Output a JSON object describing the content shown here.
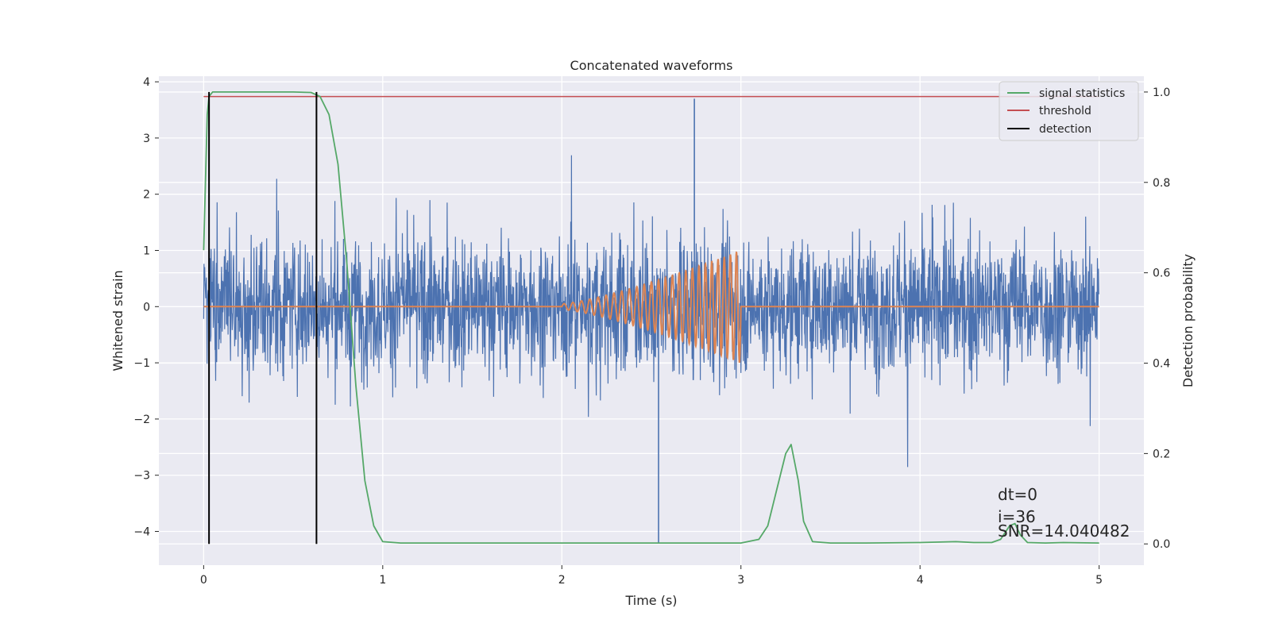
{
  "chart_data": {
    "type": "line",
    "title": "Concatenated waveforms",
    "xlabel": "Time (s)",
    "ylabel": "Whitened strain",
    "ylabel_right": "Detection probability",
    "xlim": [
      -0.25,
      5.25
    ],
    "ylim": [
      -4.6,
      4.1
    ],
    "ylim_right": [
      -0.047,
      1.035
    ],
    "x_ticks": [
      0,
      1,
      2,
      3,
      4,
      5
    ],
    "y_ticks": [
      -4,
      -3,
      -2,
      -1,
      0,
      1,
      2,
      3,
      4
    ],
    "y_ticks_right": [
      0.0,
      0.2,
      0.4,
      0.6,
      0.8,
      1.0
    ],
    "x_tick_labels": [
      "0",
      "1",
      "2",
      "3",
      "4",
      "5"
    ],
    "y_tick_labels": [
      "−4",
      "−3",
      "−2",
      "−1",
      "0",
      "1",
      "2",
      "3",
      "4"
    ],
    "y_tick_labels_right": [
      "0.0",
      "0.2",
      "0.4",
      "0.6",
      "0.8",
      "1.0"
    ],
    "grid": true,
    "legend_position": "top-right",
    "colors": {
      "background": "#eaeaf2",
      "grid": "#ffffff",
      "noise": "#4c72b0",
      "injection": "#dd8452",
      "statistics": "#55a868",
      "threshold": "#c44e52",
      "detection": "#000000"
    },
    "legend": [
      {
        "label": "signal statistics",
        "color": "#55a868"
      },
      {
        "label": "threshold",
        "color": "#c44e52"
      },
      {
        "label": "detection",
        "color": "#000000"
      }
    ],
    "series": [
      {
        "name": "signal statistics",
        "axis": "right",
        "x": [
          0,
          0.01,
          0.02,
          0.03,
          0.05,
          0.08,
          0.15,
          0.3,
          0.5,
          0.6,
          0.65,
          0.7,
          0.75,
          0.8,
          0.85,
          0.9,
          0.95,
          1.0,
          1.1,
          1.5,
          2.0,
          2.5,
          3.0,
          3.1,
          3.15,
          3.2,
          3.25,
          3.28,
          3.32,
          3.35,
          3.4,
          3.5,
          3.7,
          4.0,
          4.2,
          4.3,
          4.4,
          4.45,
          4.5,
          4.53,
          4.56,
          4.6,
          4.7,
          4.8,
          5.0
        ],
        "values": [
          0.65,
          0.8,
          0.95,
          0.99,
          1.0,
          1.0,
          1.0,
          1.0,
          1.0,
          0.999,
          0.99,
          0.95,
          0.84,
          0.62,
          0.35,
          0.14,
          0.04,
          0.005,
          0.002,
          0.002,
          0.002,
          0.002,
          0.002,
          0.01,
          0.04,
          0.12,
          0.2,
          0.22,
          0.14,
          0.05,
          0.005,
          0.002,
          0.002,
          0.003,
          0.005,
          0.003,
          0.003,
          0.01,
          0.04,
          0.045,
          0.02,
          0.003,
          0.002,
          0.003,
          0.002
        ]
      },
      {
        "name": "threshold",
        "axis": "right",
        "x": [
          0,
          5
        ],
        "values": [
          0.99,
          0.99
        ]
      },
      {
        "name": "detection",
        "axis": "right",
        "x": [
          0.03,
          0.03,
          0.63,
          0.63
        ],
        "values": [
          0.0,
          1.0,
          0.0,
          1.0
        ]
      }
    ],
    "noise_series": {
      "x_range": [
        0,
        5
      ],
      "typical_amplitude": 1.0,
      "min": -4.2,
      "max": 3.7
    },
    "injection_series": {
      "x_range": [
        2,
        3
      ],
      "amplitude_start": 0.05,
      "amplitude_end": 1.0,
      "freq_start_hz": 20,
      "freq_end_hz": 30
    },
    "annotations": [
      "dt=0",
      "i=36",
      "SNR=14.040482"
    ]
  }
}
